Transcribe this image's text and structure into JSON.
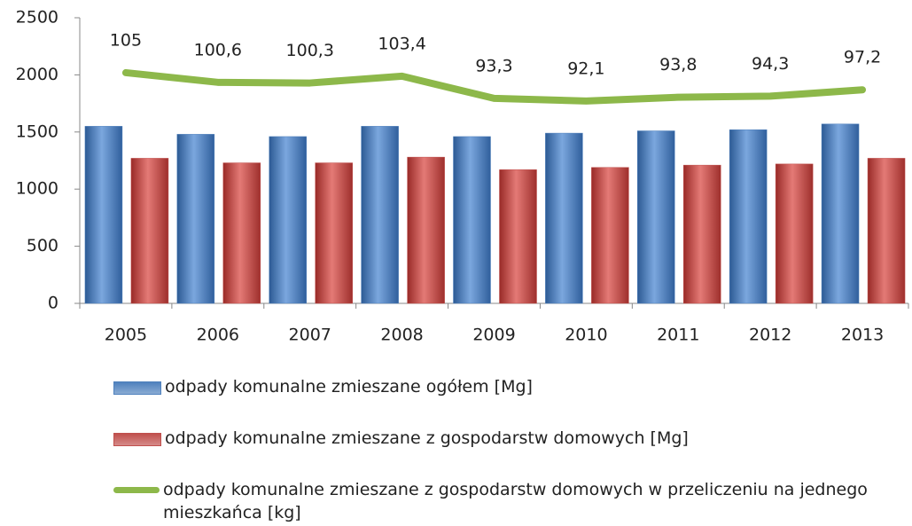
{
  "chart_data": {
    "type": "bar",
    "categories": [
      "2005",
      "2006",
      "2007",
      "2008",
      "2009",
      "2010",
      "2011",
      "2012",
      "2013"
    ],
    "series": [
      {
        "name": "odpady komunalne zmieszane ogółem [Mg]",
        "color": "#4f81bd",
        "type": "bar",
        "values": [
          1550,
          1480,
          1460,
          1550,
          1460,
          1490,
          1510,
          1520,
          1570
        ]
      },
      {
        "name": "odpady komunalne zmieszane z gospodarstw domowych [Mg]",
        "color": "#c0504d",
        "type": "bar",
        "values": [
          1270,
          1230,
          1230,
          1280,
          1170,
          1190,
          1210,
          1220,
          1270
        ]
      },
      {
        "name": "odpady komunalne zmieszane z gospodarstw domowych w przeliczeniu na jednego mieszkańca [kg]",
        "color": "#8db84a",
        "type": "line",
        "axis": "y2",
        "values": [
          105,
          100.6,
          100.3,
          103.4,
          93.3,
          92.1,
          93.8,
          94.3,
          97.2
        ],
        "value_labels": [
          "105",
          "100,6",
          "100,3",
          "103,4",
          "93,3",
          "92,1",
          "93,8",
          "94,3",
          "97,2"
        ]
      }
    ],
    "ylim": [
      0,
      2500
    ],
    "yticks": [
      0,
      500,
      1000,
      1500,
      2000,
      2500
    ],
    "y2lim": [
      0,
      130
    ],
    "grid": false,
    "legend": "bottom"
  }
}
